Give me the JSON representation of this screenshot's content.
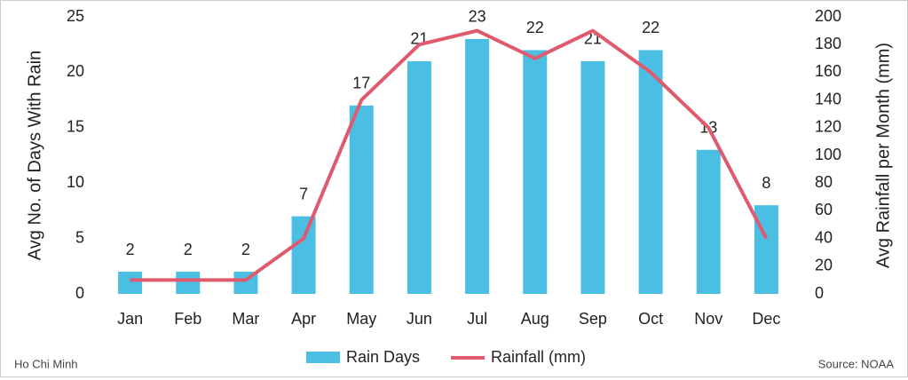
{
  "chart_data": {
    "type": "bar",
    "categories": [
      "Jan",
      "Feb",
      "Mar",
      "Apr",
      "May",
      "Jun",
      "Jul",
      "Aug",
      "Sep",
      "Oct",
      "Nov",
      "Dec"
    ],
    "series": [
      {
        "name": "Rain Days",
        "type": "bar",
        "color": "#4bbfe3",
        "values": [
          2,
          2,
          2,
          7,
          17,
          21,
          23,
          22,
          21,
          22,
          13,
          8
        ]
      },
      {
        "name": "Rainfall (mm)",
        "type": "line",
        "axis": "y2",
        "color": "#e05a6e",
        "values": [
          10,
          10,
          10,
          40,
          140,
          180,
          190,
          170,
          190,
          160,
          120,
          40
        ]
      }
    ],
    "y_label": "Avg No. of Days With Rain",
    "y2_label": "Avg Rainfall per Month (mm)",
    "ylim": [
      0,
      25
    ],
    "yticks": [
      0,
      5,
      10,
      15,
      20,
      25
    ],
    "y2lim": [
      0,
      200
    ],
    "y2ticks": [
      0,
      20,
      40,
      60,
      80,
      100,
      120,
      140,
      160,
      180,
      200
    ],
    "legend": "bottom",
    "footer_left": "Ho Chi Minh",
    "footer_right": "Source: NOAA"
  }
}
